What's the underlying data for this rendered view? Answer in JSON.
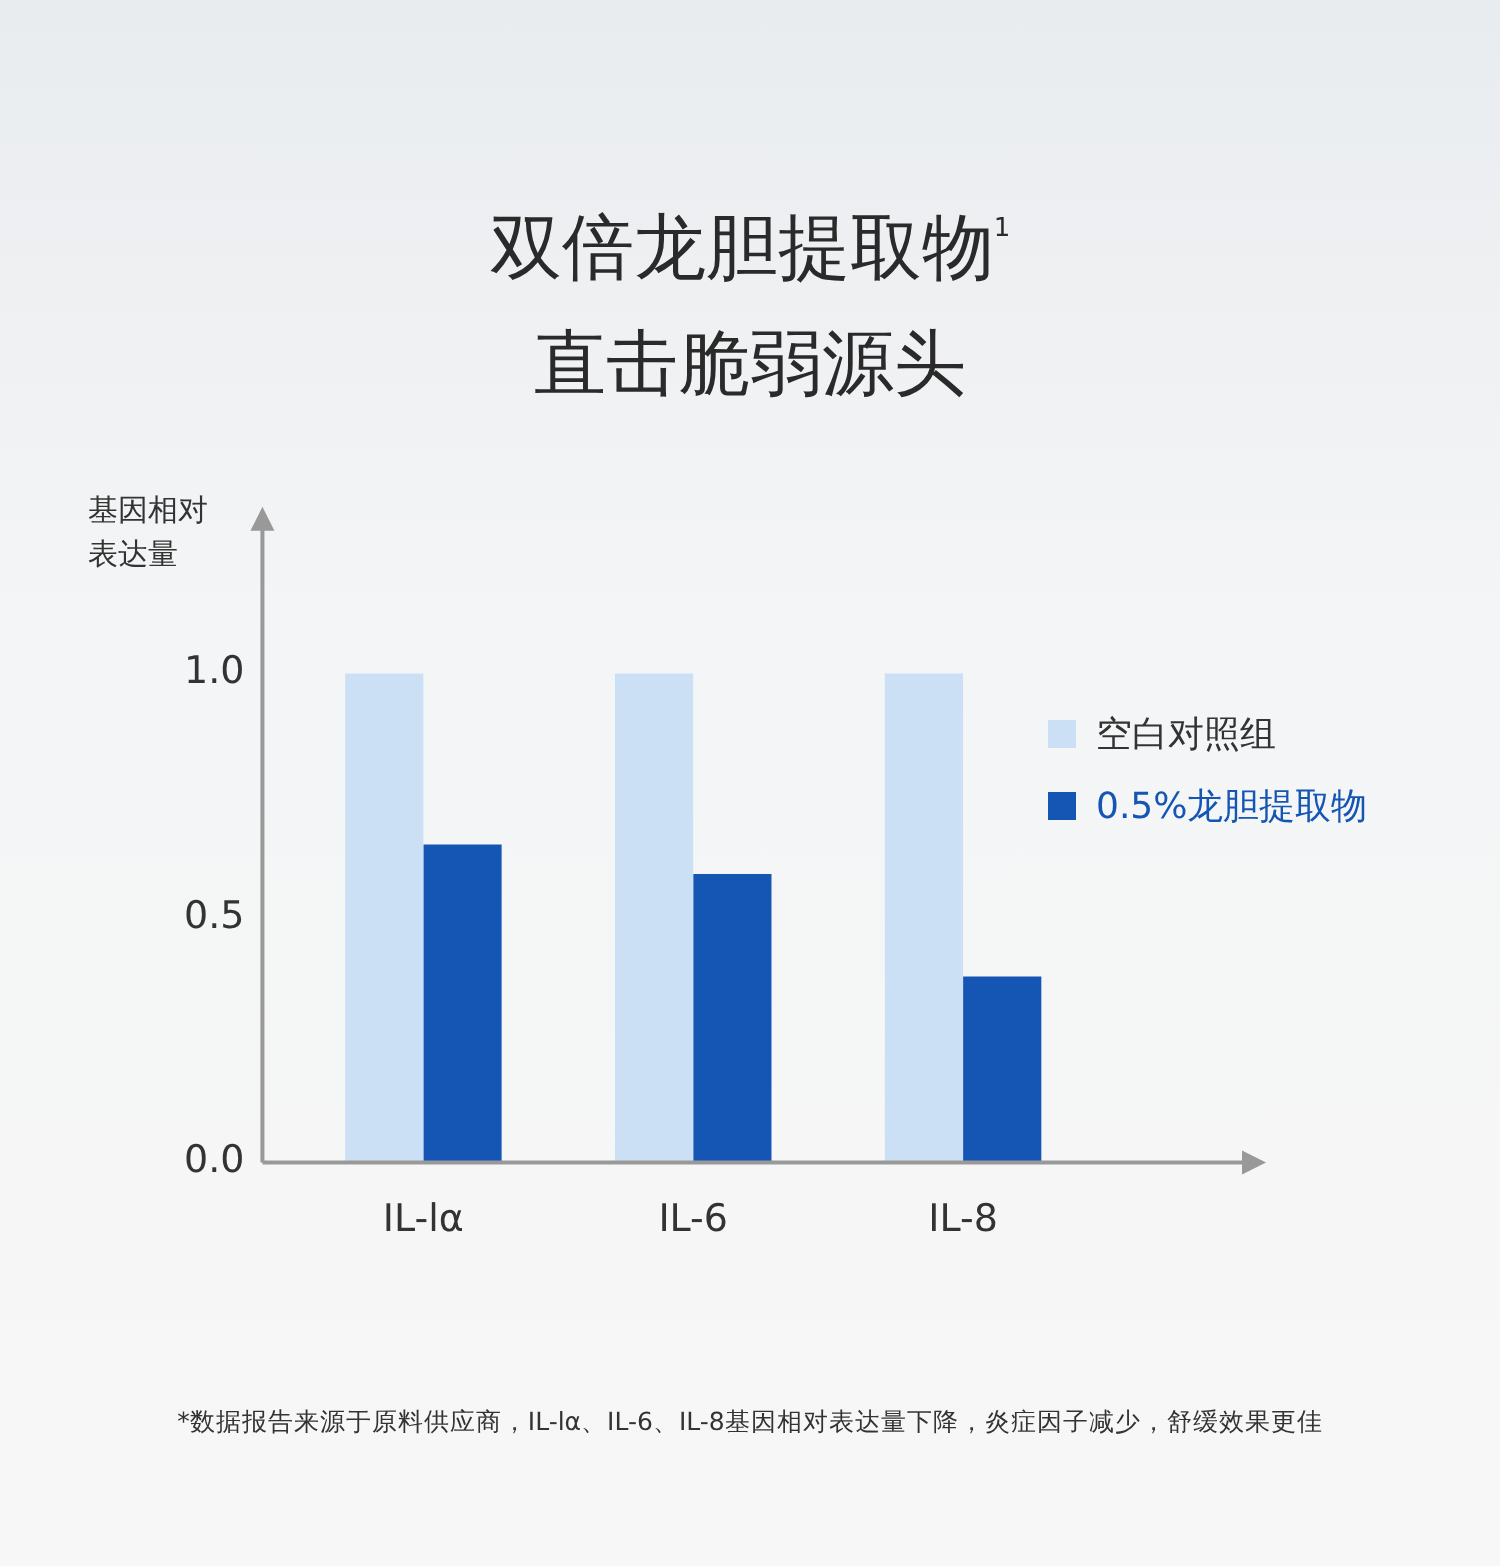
{
  "chart_data": {
    "type": "bar",
    "title": "双倍龙胆提取物$^{1}$",
    "subtitle": "直击脆弱源头",
    "ylabel": "基因相对表达量",
    "categories": [
      "IL-lα",
      "IL-6",
      "IL-8"
    ],
    "series": [
      {
        "name": "空白对照组",
        "color": "#cce0f5",
        "values": [
          1.0,
          1.0,
          1.0
        ]
      },
      {
        "name": "0.5%龙胆提取物",
        "color": "#1556b5",
        "values": [
          0.65,
          0.59,
          0.38
        ]
      }
    ],
    "ylim": [
      0,
      1.3
    ],
    "yticks": [
      {
        "value": 0,
        "label": "0.0"
      },
      {
        "value": 0.5,
        "label": "0.5"
      },
      {
        "value": 1,
        "label": "1.0"
      }
    ],
    "grid": false,
    "legend": "right",
    "annotations": [
      "*数据报告来源于原料供应商，IL-lα、IL-6、IL-8基因相对表达量下降，炎症因子减少，舒缓效果更佳"
    ]
  }
}
